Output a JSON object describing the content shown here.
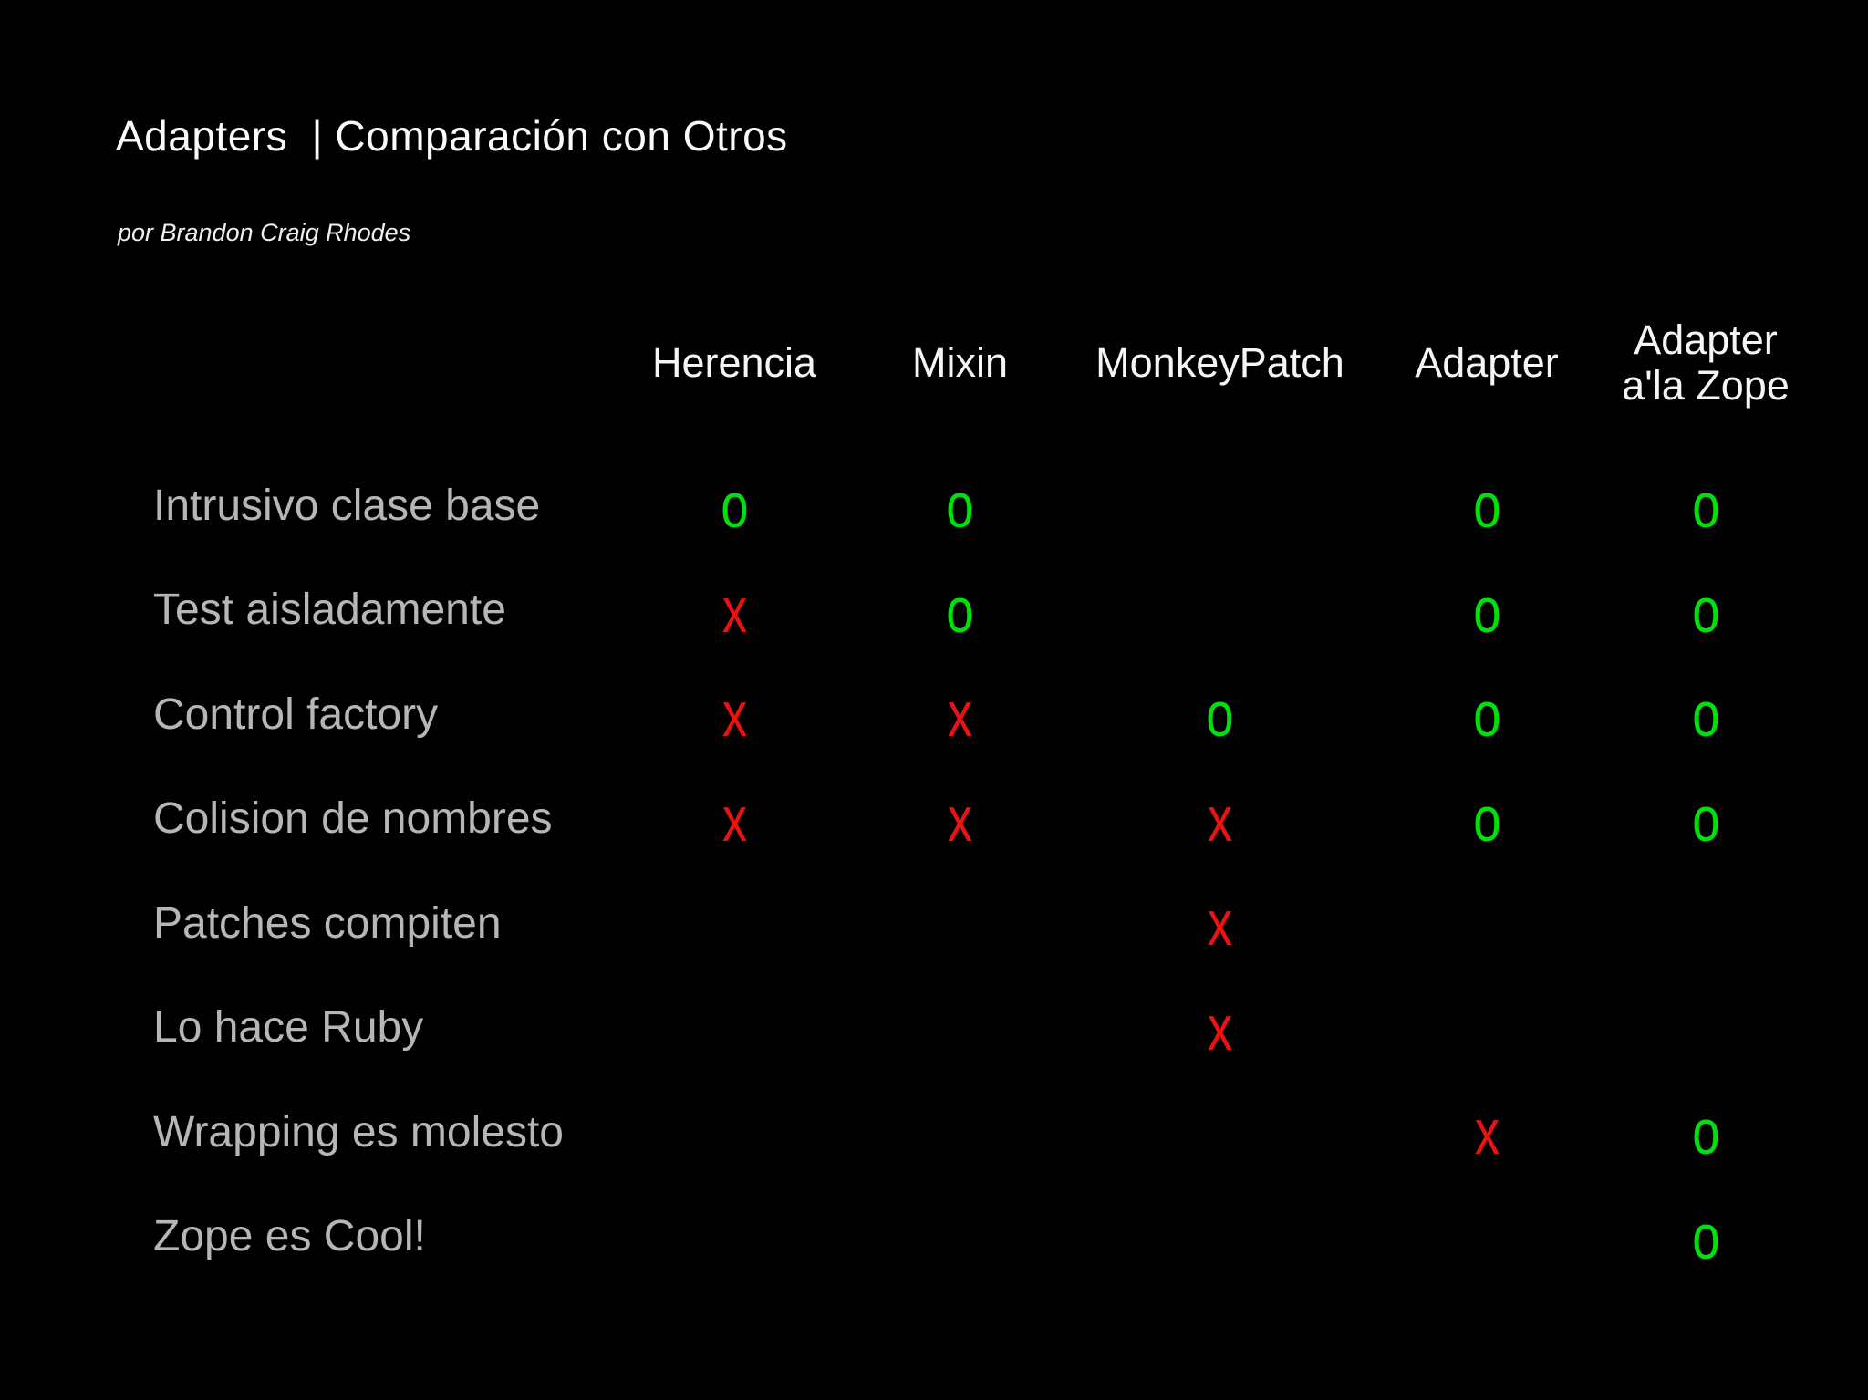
{
  "slide": {
    "title": "Adapters  | Comparación con Otros",
    "subtitle": "por Brandon Craig Rhodes"
  },
  "table": {
    "columns": [
      "Herencia",
      "Mixin",
      "MonkeyPatch",
      "Adapter",
      "Adapter a'la Zope"
    ],
    "rows": [
      {
        "label": "Intrusivo clase base",
        "marks": [
          "o",
          "o",
          "",
          "o",
          "o"
        ]
      },
      {
        "label": "Test aisladamente",
        "marks": [
          "x",
          "o",
          "",
          "o",
          "o"
        ]
      },
      {
        "label": "Control factory",
        "marks": [
          "x",
          "x",
          "o",
          "o",
          "o"
        ]
      },
      {
        "label": "Colision de nombres",
        "marks": [
          "x",
          "x",
          "x",
          "o",
          "o"
        ]
      },
      {
        "label": "Patches compiten",
        "marks": [
          "",
          "",
          "x",
          "",
          ""
        ]
      },
      {
        "label": "Lo hace Ruby",
        "marks": [
          "",
          "",
          "x",
          "",
          ""
        ]
      },
      {
        "label": "Wrapping es molesto",
        "marks": [
          "",
          "",
          "",
          "x",
          "o"
        ]
      },
      {
        "label": "Zope es Cool!",
        "marks": [
          "",
          "",
          "",
          "",
          "o"
        ]
      }
    ],
    "mark_legend": {
      "pass_mark": "o",
      "fail_mark": "x"
    }
  },
  "colors": {
    "background": "#000000",
    "title": "#fbfbfb",
    "subtitle": "#efefef",
    "header": "#f5f5f5",
    "row_label": "#b6b6b6",
    "pass": "#00e00a",
    "fail": "#ed1111"
  },
  "chart_data": {
    "type": "table",
    "title": "Adapters | Comparación con Otros",
    "columns": [
      "Herencia",
      "Mixin",
      "MonkeyPatch",
      "Adapter",
      "Adapter a'la Zope"
    ],
    "row_labels": [
      "Intrusivo clase base",
      "Test aisladamente",
      "Control factory",
      "Colision de nombres",
      "Patches compiten",
      "Lo hace Ruby",
      "Wrapping es molesto",
      "Zope es Cool!"
    ],
    "cells": [
      [
        "o",
        "o",
        "",
        "o",
        "o"
      ],
      [
        "x",
        "o",
        "",
        "o",
        "o"
      ],
      [
        "x",
        "x",
        "o",
        "o",
        "o"
      ],
      [
        "x",
        "x",
        "x",
        "o",
        "o"
      ],
      [
        "",
        "",
        "x",
        "",
        ""
      ],
      [
        "",
        "",
        "x",
        "",
        ""
      ],
      [
        "",
        "",
        "",
        "x",
        "o"
      ],
      [
        "",
        "",
        "",
        "",
        "o"
      ]
    ],
    "cell_encoding": {
      "o": "green mark",
      "x": "red mark",
      "": "blank"
    },
    "legend_position": "none",
    "grid": false
  }
}
